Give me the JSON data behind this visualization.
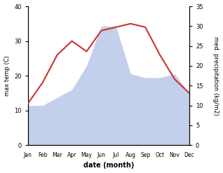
{
  "months": [
    "Jan",
    "Feb",
    "Mar",
    "Apr",
    "May",
    "Jun",
    "Jul",
    "Aug",
    "Sep",
    "Oct",
    "Nov",
    "Dec"
  ],
  "month_indices": [
    1,
    2,
    3,
    4,
    5,
    6,
    7,
    8,
    9,
    10,
    11,
    12
  ],
  "temperature": [
    12,
    18,
    26,
    30,
    27,
    33,
    34,
    35,
    34,
    26,
    19,
    15
  ],
  "precipitation": [
    10,
    10,
    12,
    14,
    20,
    30,
    30,
    18,
    17,
    17,
    18,
    13
  ],
  "temp_color": "#cc3333",
  "precip_color": "#b8c8e8",
  "temp_ylim": [
    0,
    40
  ],
  "precip_ylim": [
    0,
    35
  ],
  "temp_yticks": [
    0,
    10,
    20,
    30,
    40
  ],
  "precip_yticks": [
    0,
    5,
    10,
    15,
    20,
    25,
    30,
    35
  ],
  "xlabel": "date (month)",
  "ylabel_left": "max temp (C)",
  "ylabel_right": "med. precipitation (kg/m2)",
  "bg_color": "#ffffff",
  "fig_width": 3.18,
  "fig_height": 2.47,
  "dpi": 100
}
